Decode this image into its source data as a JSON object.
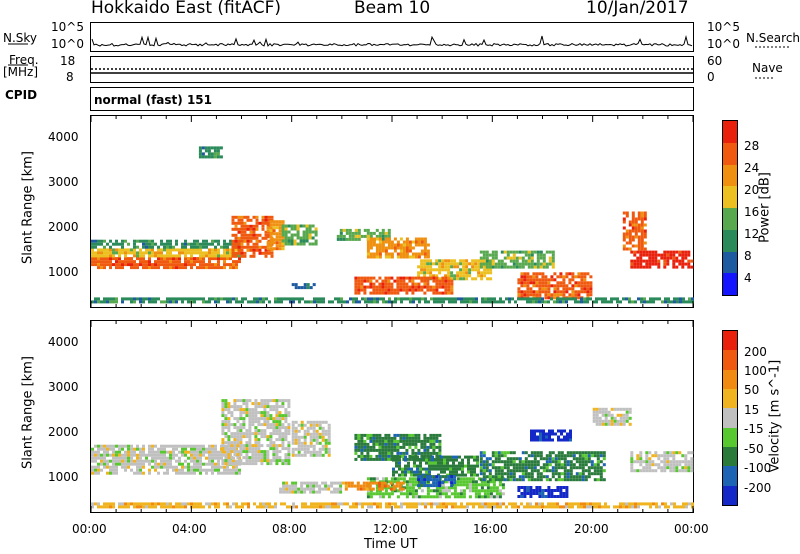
{
  "header": {
    "station": "Hokkaido East (fitACF)",
    "beam": "Beam 10",
    "date": "10/Jan/2017"
  },
  "strip": {
    "nsky_label": "N.Sky",
    "nsky_ticks": [
      "10^5",
      "10^0"
    ],
    "nsearch_label": "N.Search",
    "nsearch_ticks": [
      "10^5",
      "10^0"
    ],
    "freq_label_line1": "Freq.",
    "freq_label_line2": "[MHz]",
    "freq_ticks": [
      "18",
      "8"
    ],
    "nave_label": "Nave",
    "nave_ticks": [
      "60",
      "0"
    ],
    "cpid_label": "CPID",
    "cpid_value": "normal (fast) 151"
  },
  "chart_data": [
    {
      "type": "heatmap",
      "name": "power",
      "ylabel": "Slant Range [km]",
      "y_ticks": [
        "1000",
        "2000",
        "3000",
        "4000"
      ],
      "ylim": [
        200,
        4600
      ],
      "xlim": [
        0,
        24
      ],
      "colorbar": {
        "label": "Power [dB]",
        "ticks": [
          "28",
          "24",
          "20",
          "16",
          "12",
          "8",
          "4"
        ],
        "colors": [
          "#1414ff",
          "#1e5aa0",
          "#2a8a5a",
          "#58a850",
          "#ecc020",
          "#f09010",
          "#f05a10",
          "#e8200c"
        ]
      },
      "regions": [
        {
          "x0": 0.0,
          "x1": 6.0,
          "y0": 1050,
          "y1": 1350,
          "level": 6
        },
        {
          "x0": 0.0,
          "x1": 6.0,
          "y0": 1350,
          "y1": 1550,
          "level": 4
        },
        {
          "x0": 0.0,
          "x1": 6.0,
          "y0": 1550,
          "y1": 1750,
          "level": 2
        },
        {
          "x0": 5.6,
          "x1": 7.3,
          "y0": 1300,
          "y1": 2300,
          "level": 6
        },
        {
          "x0": 7.0,
          "x1": 7.7,
          "y0": 1500,
          "y1": 2200,
          "level": 5
        },
        {
          "x0": 7.6,
          "x1": 9.0,
          "y0": 1600,
          "y1": 2100,
          "level": 3
        },
        {
          "x0": 9.8,
          "x1": 12.0,
          "y0": 1700,
          "y1": 2000,
          "level": 3
        },
        {
          "x0": 11.0,
          "x1": 13.5,
          "y0": 1300,
          "y1": 1800,
          "level": 5
        },
        {
          "x0": 13.0,
          "x1": 16.0,
          "y0": 800,
          "y1": 1300,
          "level": 4
        },
        {
          "x0": 10.5,
          "x1": 14.5,
          "y0": 500,
          "y1": 900,
          "level": 6
        },
        {
          "x0": 17.0,
          "x1": 20.0,
          "y0": 400,
          "y1": 1000,
          "level": 6
        },
        {
          "x0": 15.5,
          "x1": 18.5,
          "y0": 1100,
          "y1": 1500,
          "level": 3
        },
        {
          "x0": 21.5,
          "x1": 24.0,
          "y0": 1100,
          "y1": 1500,
          "level": 7
        },
        {
          "x0": 21.2,
          "x1": 22.2,
          "y0": 1500,
          "y1": 2400,
          "level": 6
        },
        {
          "x0": 0.0,
          "x1": 24.0,
          "y0": 250,
          "y1": 420,
          "level": 2
        },
        {
          "x0": 4.3,
          "x1": 5.3,
          "y0": 3650,
          "y1": 3900,
          "level": 2
        },
        {
          "x0": 8.0,
          "x1": 9.0,
          "y0": 600,
          "y1": 750,
          "level": 1
        }
      ]
    },
    {
      "type": "heatmap",
      "name": "velocity",
      "ylabel": "Slant Range [km]",
      "y_ticks": [
        "1000",
        "2000",
        "3000",
        "4000"
      ],
      "ylim": [
        200,
        4600
      ],
      "xlim": [
        0,
        24
      ],
      "x_ticks": [
        "00:00",
        "04:00",
        "08:00",
        "12:00",
        "16:00",
        "20:00",
        "00:00"
      ],
      "xlabel": "Time UT",
      "colorbar": {
        "label": "Velocity [m s^-1]",
        "ticks": [
          "200",
          "100",
          "50",
          "15",
          "-15",
          "-50",
          "-100",
          "-200"
        ],
        "colors": [
          "#1428c8",
          "#1e64b4",
          "#2a7a3c",
          "#58c830",
          "#c0c0c0",
          "#f0b420",
          "#f08a10",
          "#f05a10",
          "#e8200c"
        ]
      },
      "regions": [
        {
          "x0": 0.0,
          "x1": 6.0,
          "y0": 1050,
          "y1": 1750,
          "level": 4
        },
        {
          "x0": 5.2,
          "x1": 8.0,
          "y0": 1300,
          "y1": 2800,
          "level": 4
        },
        {
          "x0": 8.0,
          "x1": 9.5,
          "y0": 1500,
          "y1": 2300,
          "level": 4
        },
        {
          "x0": 10.5,
          "x1": 14.0,
          "y0": 1400,
          "y1": 2000,
          "level": 2
        },
        {
          "x0": 12.0,
          "x1": 15.5,
          "y0": 1000,
          "y1": 1500,
          "level": 2
        },
        {
          "x0": 11.0,
          "x1": 16.5,
          "y0": 500,
          "y1": 1000,
          "level": 3
        },
        {
          "x0": 13.0,
          "x1": 14.5,
          "y0": 800,
          "y1": 1050,
          "level": 1
        },
        {
          "x0": 17.0,
          "x1": 19.0,
          "y0": 500,
          "y1": 800,
          "level": 0
        },
        {
          "x0": 17.5,
          "x1": 19.2,
          "y0": 1800,
          "y1": 2100,
          "level": 0
        },
        {
          "x0": 15.5,
          "x1": 20.5,
          "y0": 900,
          "y1": 1600,
          "level": 2
        },
        {
          "x0": 21.5,
          "x1": 24.0,
          "y0": 1100,
          "y1": 1600,
          "level": 4
        },
        {
          "x0": 20.0,
          "x1": 21.5,
          "y0": 2200,
          "y1": 2600,
          "level": 4
        },
        {
          "x0": 0.0,
          "x1": 24.0,
          "y0": 250,
          "y1": 420,
          "level": 5
        },
        {
          "x0": 7.5,
          "x1": 10.0,
          "y0": 600,
          "y1": 900,
          "level": 4
        },
        {
          "x0": 10.0,
          "x1": 12.5,
          "y0": 700,
          "y1": 900,
          "level": 6
        }
      ]
    }
  ]
}
